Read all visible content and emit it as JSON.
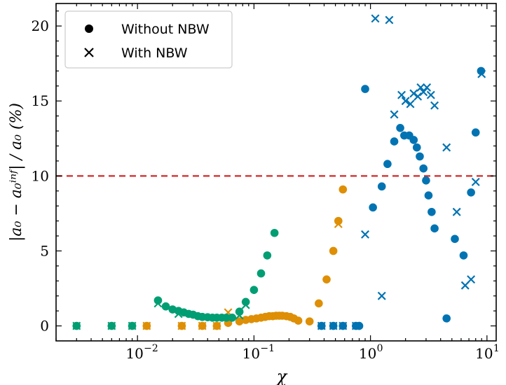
{
  "chart_data": {
    "type": "scatter",
    "xscale": "log",
    "xlim": [
      0.002,
      12
    ],
    "ylim": [
      -1,
      21.5
    ],
    "xlabel": "χ",
    "ylabel": "|a₀ − a₀ⁱⁿᶠ| / a₀ (%)",
    "x_ticks": [
      0.01,
      0.1,
      1,
      10
    ],
    "x_tick_labels": [
      "10",
      "10",
      "10",
      "10"
    ],
    "x_tick_exponents": [
      "−2",
      "−1",
      "0",
      "1"
    ],
    "y_ticks": [
      0,
      5,
      10,
      15,
      20
    ],
    "y_tick_labels": [
      "0",
      "5",
      "10",
      "15",
      "20"
    ],
    "threshold": {
      "y": 10,
      "color": "#d62728",
      "style": "dashed"
    },
    "grid": false,
    "legend": {
      "position": "top-left",
      "entries": [
        {
          "marker": "circle",
          "label": "Without NBW"
        },
        {
          "marker": "x",
          "label": "With NBW"
        }
      ]
    },
    "series": [
      {
        "color": "#0173b2",
        "without_nbw": [
          [
            0.8,
            0.0
          ],
          [
            0.9,
            15.8
          ],
          [
            1.05,
            7.9
          ],
          [
            1.25,
            9.3
          ],
          [
            1.4,
            10.8
          ],
          [
            1.6,
            12.3
          ],
          [
            1.8,
            13.2
          ],
          [
            1.95,
            12.7
          ],
          [
            2.15,
            12.7
          ],
          [
            2.35,
            12.4
          ],
          [
            2.5,
            11.9
          ],
          [
            2.65,
            11.3
          ],
          [
            2.85,
            10.5
          ],
          [
            3.0,
            9.7
          ],
          [
            3.15,
            8.7
          ],
          [
            3.35,
            7.6
          ],
          [
            3.55,
            6.5
          ],
          [
            4.5,
            0.5
          ],
          [
            5.3,
            5.8
          ],
          [
            6.3,
            4.7
          ],
          [
            7.3,
            8.9
          ],
          [
            8.0,
            12.9
          ],
          [
            8.9,
            17.0
          ]
        ],
        "with_nbw": [
          [
            0.9,
            6.1
          ],
          [
            1.1,
            20.5
          ],
          [
            1.25,
            2.0
          ],
          [
            1.45,
            20.4
          ],
          [
            1.6,
            14.1
          ],
          [
            1.85,
            15.4
          ],
          [
            2.0,
            15.0
          ],
          [
            2.2,
            14.8
          ],
          [
            2.35,
            15.5
          ],
          [
            2.55,
            15.3
          ],
          [
            2.7,
            15.9
          ],
          [
            2.85,
            15.6
          ],
          [
            3.05,
            15.9
          ],
          [
            3.3,
            15.4
          ],
          [
            3.55,
            14.7
          ],
          [
            4.5,
            11.9
          ],
          [
            5.5,
            7.6
          ],
          [
            6.5,
            2.7
          ],
          [
            7.3,
            3.1
          ],
          [
            8.0,
            9.6
          ],
          [
            9.0,
            16.8
          ]
        ],
        "zero_points": [
          0.38,
          0.48,
          0.58,
          0.75
        ]
      },
      {
        "color": "#de8f05",
        "without_nbw": [
          [
            0.06,
            0.2
          ],
          [
            0.075,
            0.3
          ],
          [
            0.085,
            0.4
          ],
          [
            0.095,
            0.45
          ],
          [
            0.105,
            0.5
          ],
          [
            0.115,
            0.55
          ],
          [
            0.125,
            0.6
          ],
          [
            0.135,
            0.65
          ],
          [
            0.145,
            0.65
          ],
          [
            0.155,
            0.68
          ],
          [
            0.165,
            0.68
          ],
          [
            0.175,
            0.68
          ],
          [
            0.19,
            0.65
          ],
          [
            0.205,
            0.6
          ],
          [
            0.22,
            0.5
          ],
          [
            0.24,
            0.35
          ],
          [
            0.3,
            0.3
          ],
          [
            0.36,
            1.5
          ],
          [
            0.42,
            3.1
          ],
          [
            0.48,
            5.0
          ],
          [
            0.53,
            7.0
          ],
          [
            0.58,
            9.1
          ]
        ],
        "with_nbw": [
          [
            0.06,
            0.9
          ],
          [
            0.075,
            0.7
          ],
          [
            0.53,
            6.8
          ]
        ],
        "zero_points": [
          0.012,
          0.024,
          0.036,
          0.048
        ]
      },
      {
        "color": "#029e73",
        "without_nbw": [
          [
            0.015,
            1.7
          ],
          [
            0.0175,
            1.3
          ],
          [
            0.02,
            1.1
          ],
          [
            0.0225,
            1.0
          ],
          [
            0.025,
            0.9
          ],
          [
            0.0275,
            0.8
          ],
          [
            0.03,
            0.75
          ],
          [
            0.033,
            0.65
          ],
          [
            0.036,
            0.6
          ],
          [
            0.04,
            0.58
          ],
          [
            0.044,
            0.55
          ],
          [
            0.048,
            0.55
          ],
          [
            0.053,
            0.55
          ],
          [
            0.058,
            0.55
          ],
          [
            0.065,
            0.55
          ],
          [
            0.075,
            0.95
          ],
          [
            0.085,
            1.6
          ],
          [
            0.1,
            2.4
          ],
          [
            0.115,
            3.5
          ],
          [
            0.13,
            4.7
          ],
          [
            0.15,
            6.2
          ]
        ],
        "with_nbw": [
          [
            0.015,
            1.5
          ],
          [
            0.0225,
            0.8
          ],
          [
            0.075,
            0.7
          ],
          [
            0.085,
            1.4
          ]
        ],
        "zero_points": [
          0.003,
          0.006,
          0.009
        ]
      }
    ]
  }
}
